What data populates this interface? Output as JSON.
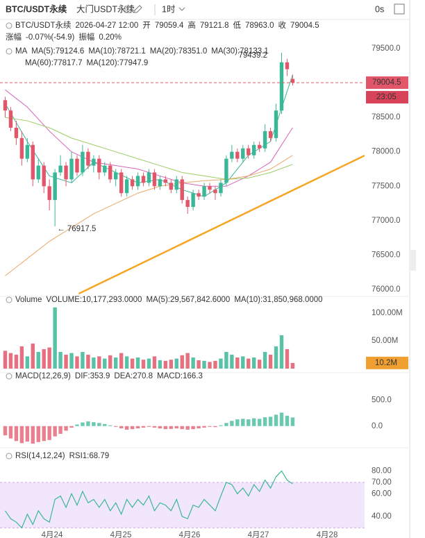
{
  "header": {
    "symbol": "BTC/USDT永续",
    "market": "大门USDT永续",
    "interval": "1时",
    "timer": "0s"
  },
  "chart_data": {
    "type": "candlestick",
    "info": [
      {
        "label": "BTC/USDT永续 2026-04-27 12:00",
        "value": ""
      }
    ],
    "info_line": [
      "BTC/USDT永续",
      "2026-04-27 12:00"
    ],
    "ohlc": [
      {
        "label": "开",
        "value": "79059.4"
      },
      {
        "label": "高",
        "value": "79121.8"
      },
      {
        "label": "低",
        "value": "78963.0"
      },
      {
        "label": "收",
        "value": "79004.5"
      }
    ],
    "change": [
      {
        "label": "涨幅",
        "value": "-0.07%(-54.9)"
      },
      {
        "label": "振幅",
        "value": "0.20%"
      }
    ],
    "ma_title": "MA",
    "ma_x": [
      0,
      4,
      8,
      12,
      16,
      20,
      24,
      28,
      32,
      36,
      40,
      44,
      48,
      52
    ],
    "ma": [
      {
        "name": "MA(5):79124.6",
        "color": "#3ab796",
        "values": [
          78700,
          78150,
          77650,
          77550,
          77850,
          77700,
          77550,
          77600,
          77450,
          77350,
          77550,
          77950,
          78150,
          79120
        ]
      },
      {
        "name": "MA(10):78721.1",
        "color": "#e8a317"
      },
      {
        "name": "MA(20):78351.0",
        "color": "#d664b8",
        "values": [
          78900,
          78650,
          78300,
          78000,
          77850,
          77800,
          77750,
          77650,
          77550,
          77500,
          77500,
          77650,
          77850,
          78351
        ]
      },
      {
        "name": "MA(30):78133.1",
        "color": "#8c6bd6"
      },
      {
        "name": "MA(60):77817.7",
        "color": "#9ccc65",
        "values": [
          78500,
          78450,
          78350,
          78200,
          78100,
          78000,
          77900,
          77800,
          77700,
          77650,
          77600,
          77620,
          77700,
          77818
        ]
      },
      {
        "name": "MA(120):77947.9",
        "color": "#e7a86a",
        "values": [
          76200,
          76450,
          76700,
          76900,
          77100,
          77250,
          77400,
          77500,
          77550,
          77580,
          77600,
          77650,
          77750,
          77948
        ]
      }
    ],
    "candles": [
      [
        78750,
        78800,
        78500,
        78600
      ],
      [
        78600,
        78650,
        78300,
        78350
      ],
      [
        78350,
        78450,
        78100,
        78200
      ],
      [
        78200,
        78300,
        77800,
        77900
      ],
      [
        77900,
        78200,
        77850,
        78100
      ],
      [
        78100,
        78150,
        77500,
        77600
      ],
      [
        77600,
        77900,
        77550,
        77800
      ],
      [
        77800,
        77850,
        77400,
        77500
      ],
      [
        77500,
        77600,
        77150,
        77300
      ],
      [
        77300,
        77750,
        76917.5,
        77700
      ],
      [
        77700,
        77950,
        77650,
        77800
      ],
      [
        77800,
        77850,
        77500,
        77600
      ],
      [
        77600,
        78000,
        77550,
        77900
      ],
      [
        77900,
        77950,
        77650,
        77700
      ],
      [
        77700,
        78100,
        77650,
        78000
      ],
      [
        78000,
        78050,
        77750,
        77800
      ],
      [
        77800,
        77950,
        77700,
        77900
      ],
      [
        77900,
        77950,
        77600,
        77700
      ],
      [
        77700,
        77850,
        77650,
        77800
      ],
      [
        77800,
        77850,
        77550,
        77600
      ],
      [
        77600,
        77750,
        77500,
        77700
      ],
      [
        77700,
        77750,
        77350,
        77400
      ],
      [
        77400,
        77650,
        77350,
        77600
      ],
      [
        77600,
        77650,
        77450,
        77500
      ],
      [
        77500,
        77700,
        77450,
        77650
      ],
      [
        77650,
        77700,
        77500,
        77550
      ],
      [
        77550,
        77750,
        77500,
        77700
      ],
      [
        77700,
        77750,
        77450,
        77500
      ],
      [
        77500,
        77650,
        77450,
        77600
      ],
      [
        77600,
        77650,
        77500,
        77550
      ],
      [
        77550,
        77600,
        77400,
        77450
      ],
      [
        77450,
        77650,
        77400,
        77600
      ],
      [
        77600,
        77650,
        77250,
        77300
      ],
      [
        77300,
        77350,
        77100,
        77200
      ],
      [
        77200,
        77450,
        77150,
        77400
      ],
      [
        77400,
        77450,
        77300,
        77350
      ],
      [
        77350,
        77550,
        77300,
        77500
      ],
      [
        77500,
        77550,
        77400,
        77450
      ],
      [
        77450,
        77500,
        77300,
        77400
      ],
      [
        77400,
        77600,
        77350,
        77550
      ],
      [
        77550,
        77950,
        77500,
        77900
      ],
      [
        77900,
        78100,
        77850,
        78000
      ],
      [
        78000,
        78050,
        77850,
        77900
      ],
      [
        77900,
        78100,
        77850,
        78050
      ],
      [
        78050,
        78100,
        77900,
        77950
      ],
      [
        77950,
        78150,
        77900,
        78100
      ],
      [
        78100,
        78150,
        78000,
        78050
      ],
      [
        78050,
        78400,
        78000,
        78300
      ],
      [
        78300,
        78350,
        78150,
        78200
      ],
      [
        78200,
        78700,
        78150,
        78600
      ],
      [
        78600,
        79439.2,
        78550,
        79300
      ],
      [
        79300,
        79350,
        79100,
        79200
      ],
      [
        79059.4,
        79121.8,
        78963.0,
        79004.5
      ]
    ],
    "up_color": "#3ab796",
    "down_color": "#e2566a",
    "ylim": [
      75900,
      79600
    ],
    "yticks": [
      {
        "value": 76000,
        "label": "76000.0"
      },
      {
        "value": 76500,
        "label": "76500.0"
      },
      {
        "value": 77000,
        "label": "77000.0"
      },
      {
        "value": 77500,
        "label": "77500.0"
      },
      {
        "value": 78000,
        "label": "78000.0"
      },
      {
        "value": 78500,
        "label": "78500.0"
      },
      {
        "value": 79500,
        "label": "79500.0"
      }
    ],
    "high_label": "79439.2",
    "low_label": "← 76917.5",
    "last_price": 79004.5,
    "countdown": "23:05",
    "trendline": {
      "x": [
        13.3,
        65
      ],
      "y": [
        75940,
        77945
      ],
      "color": "#f5a623"
    },
    "volume": {
      "title": "Volume",
      "legend": [
        {
          "name": "VOLUME:10,177,293.0000",
          "color": "#777"
        },
        {
          "name": "MA(5):29,567,842.6000",
          "color": "#3ab796"
        },
        {
          "name": "MA(10):31,850,968.0000",
          "color": "#e8a317"
        }
      ],
      "values": [
        32000000,
        28000000,
        25000000,
        40000000,
        22000000,
        45000000,
        30000000,
        35000000,
        38000000,
        110000000,
        30000000,
        25000000,
        28000000,
        22000000,
        30000000,
        25000000,
        20000000,
        22000000,
        18000000,
        24000000,
        20000000,
        28000000,
        22000000,
        18000000,
        20000000,
        16000000,
        18000000,
        22000000,
        15000000,
        14000000,
        16000000,
        18000000,
        24000000,
        28000000,
        20000000,
        15000000,
        14000000,
        12000000,
        14000000,
        18000000,
        30000000,
        25000000,
        20000000,
        22000000,
        18000000,
        20000000,
        16000000,
        30000000,
        25000000,
        40000000,
        60000000,
        35000000,
        10177293
      ],
      "last_label": "10.2M",
      "ylim": [
        0,
        111000000
      ],
      "yticks": [
        {
          "value": 50000000,
          "label": "50.00M"
        },
        {
          "value": 100000000,
          "label": "100.00M"
        }
      ]
    },
    "macd": {
      "title": "MACD(12,26,9)",
      "legend": [
        {
          "name": "DIF:353.9",
          "color": "#3ab796"
        },
        {
          "name": "DEA:270.8",
          "color": "#e8a317"
        },
        {
          "name": "MACD:166.3",
          "color": "#555"
        }
      ],
      "values": [
        -180,
        -240,
        -290,
        -330,
        -300,
        -340,
        -310,
        -290,
        -270,
        -200,
        -150,
        -90,
        -30,
        30,
        70,
        90,
        75,
        60,
        40,
        15,
        -15,
        -45,
        -70,
        -60,
        -45,
        -30,
        -15,
        -30,
        -45,
        -60,
        -55,
        -45,
        -60,
        -70,
        -60,
        -45,
        -30,
        -15,
        -20,
        15,
        60,
        100,
        130,
        140,
        130,
        150,
        140,
        170,
        180,
        220,
        260,
        200,
        166.3
      ],
      "ylim": [
        -420,
        830
      ],
      "yticks": [
        {
          "value": 0,
          "label": "0.0"
        },
        {
          "value": 500,
          "label": "500.0"
        }
      ]
    },
    "rsi": {
      "title": "RSI(14,12,24)",
      "legend": [
        {
          "name": "RSI1:68.79",
          "color": "#3ab796"
        }
      ],
      "values": [
        45,
        38,
        35,
        30,
        42,
        33,
        45,
        38,
        35,
        55,
        58,
        48,
        60,
        50,
        62,
        52,
        55,
        48,
        55,
        45,
        52,
        42,
        55,
        48,
        55,
        50,
        58,
        45,
        52,
        50,
        45,
        55,
        40,
        38,
        50,
        48,
        55,
        50,
        45,
        58,
        70,
        68,
        60,
        65,
        58,
        68,
        62,
        72,
        65,
        75,
        80,
        72,
        68.79
      ],
      "ylim": [
        29,
        87
      ],
      "band": [
        30,
        70
      ],
      "yticks": [
        {
          "value": 40,
          "label": "40.00"
        },
        {
          "value": 60,
          "label": "60.00"
        },
        {
          "value": 70,
          "label": "70.00"
        },
        {
          "value": 80,
          "label": "80.00"
        }
      ]
    },
    "dates": [
      "4月24",
      "4月25",
      "4月26",
      "4月27",
      "4月28"
    ]
  }
}
